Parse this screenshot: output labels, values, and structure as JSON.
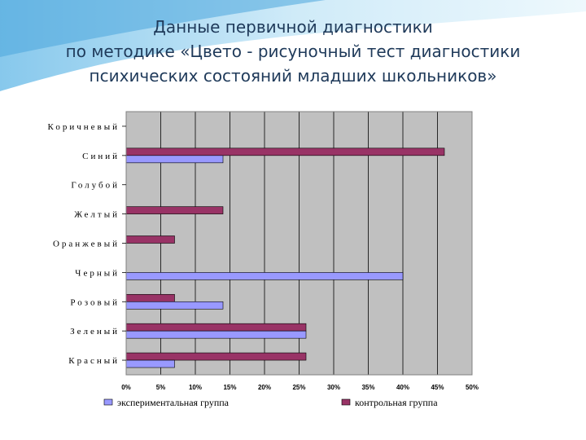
{
  "slide": {
    "title_lines": [
      "Данные первичной диагностики",
      "по методике «Цвето - рисуночный тест диагностики",
      "психических состояний младших школьников»"
    ]
  },
  "chart_data": {
    "type": "bar",
    "orientation": "horizontal",
    "categories": [
      "Коричневый",
      "Синий",
      "Голубой",
      "Желтый",
      "Оранжевый",
      "Черный",
      "Розовый",
      "Зеленый",
      "Красный"
    ],
    "series": [
      {
        "name": "экспериментальная группа",
        "color": "#9999ff",
        "values": [
          0,
          14,
          0,
          0,
          0,
          40,
          14,
          26,
          7
        ]
      },
      {
        "name": "контрольная группа",
        "color": "#993366",
        "values": [
          0,
          46,
          0,
          14,
          7,
          0,
          7,
          26,
          26
        ]
      }
    ],
    "xlim": [
      0,
      50
    ],
    "x_ticks": [
      "0%",
      "5%",
      "10%",
      "15%",
      "20%",
      "25%",
      "30%",
      "35%",
      "40%",
      "45%",
      "50%"
    ],
    "plot_background": "#c0c0c0",
    "grid": true,
    "legend_position": "bottom"
  }
}
